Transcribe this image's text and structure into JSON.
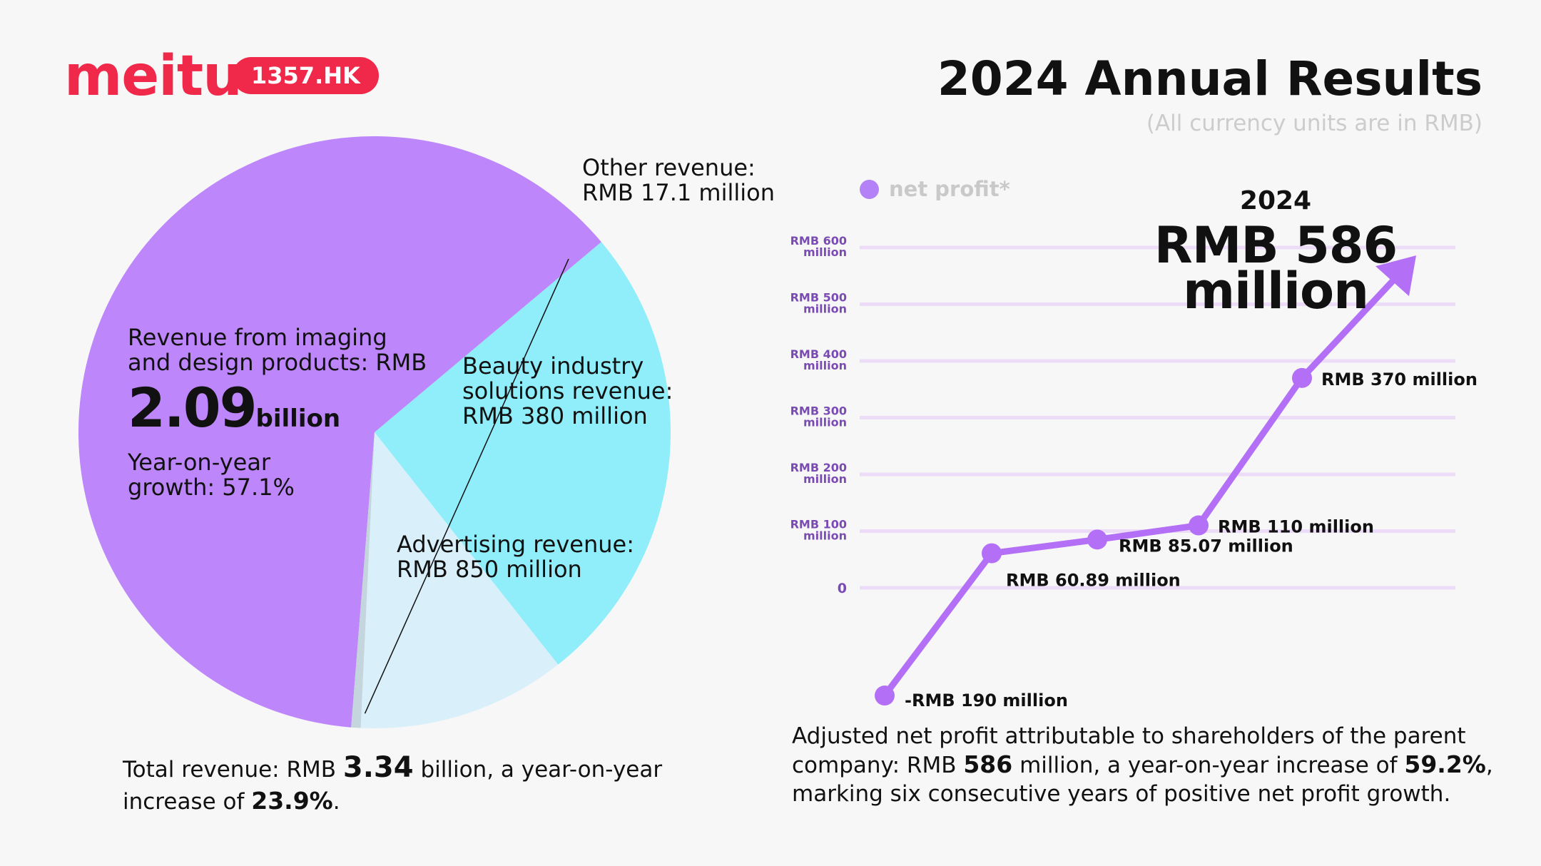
{
  "brand": {
    "logo_text": "meitu",
    "ticker": "1357.HK"
  },
  "header": {
    "title": "2024 Annual Results",
    "subtitle": "(All currency units are in RMB)"
  },
  "colors": {
    "brand": "#f0284a",
    "imaging": "#bd86fa",
    "advertising": "#8feefa",
    "beauty": "#d9f0fb",
    "other": "#c4d5de",
    "line": "#b36ff5",
    "grid": "#ecdcf8"
  },
  "pie": {
    "imaging_label_1": "Revenue from imaging",
    "imaging_label_2": "and design products: RMB",
    "imaging_value": "2.09",
    "imaging_unit": "billion",
    "imaging_growth_1": "Year-on-year",
    "imaging_growth_2": "growth: 57.1%",
    "other_label_1": "Other revenue:",
    "other_label_2": "RMB 17.1 million",
    "beauty_label_1": "Beauty industry",
    "beauty_label_2": "solutions revenue:",
    "beauty_label_3": "RMB 380 million",
    "ad_label_1": "Advertising revenue:",
    "ad_label_2": "RMB 850 million"
  },
  "total": {
    "prefix": "Total revenue: RMB ",
    "value": "3.34",
    "middle": " billion, a year-on-year",
    "line2": "increase of ",
    "pct": "23.9%",
    "suffix": "."
  },
  "line_legend": "net profit*",
  "callout": {
    "year": "2024",
    "value_line1": "RMB 586",
    "value_line2": "million"
  },
  "profit_summary": {
    "line1": "Adjusted net profit attributable to shareholders of the parent",
    "line2_prefix": "company: RMB ",
    "line2_value": "586",
    "line2_middle": " million, a year-on-year increase of ",
    "line2_pct": "59.2%",
    "line2_suffix": ",",
    "line3": "marking six consecutive years of positive net profit growth."
  },
  "chart_data": [
    {
      "type": "pie",
      "categories": [
        "Revenue from imaging and design products",
        "Advertising revenue",
        "Beauty industry solutions revenue",
        "Other revenue"
      ],
      "values": [
        2090,
        850,
        380,
        17.1
      ],
      "unit": "RMB million"
    },
    {
      "type": "line",
      "ylabel": "",
      "ylim": [
        -190,
        600
      ],
      "yticks": [
        0,
        100,
        200,
        300,
        400,
        500,
        600
      ],
      "ytick_labels": [
        {
          "top": "",
          "bottom": "0"
        },
        {
          "top": "RMB 100",
          "bottom": "million"
        },
        {
          "top": "RMB 200",
          "bottom": "million"
        },
        {
          "top": "RMB 300",
          "bottom": "million"
        },
        {
          "top": "RMB 400",
          "bottom": "million"
        },
        {
          "top": "RMB 500",
          "bottom": "million"
        },
        {
          "top": "RMB 600",
          "bottom": "million"
        }
      ],
      "grid": true,
      "series": [
        {
          "name": "net profit*",
          "values": [
            -190,
            60.89,
            85.07,
            110,
            370
          ],
          "labels": [
            "-RMB 190 million",
            "RMB 60.89 million",
            "RMB 85.07 million",
            "RMB 110 million",
            "RMB 370 million"
          ],
          "arrow_end": 586
        }
      ]
    }
  ]
}
